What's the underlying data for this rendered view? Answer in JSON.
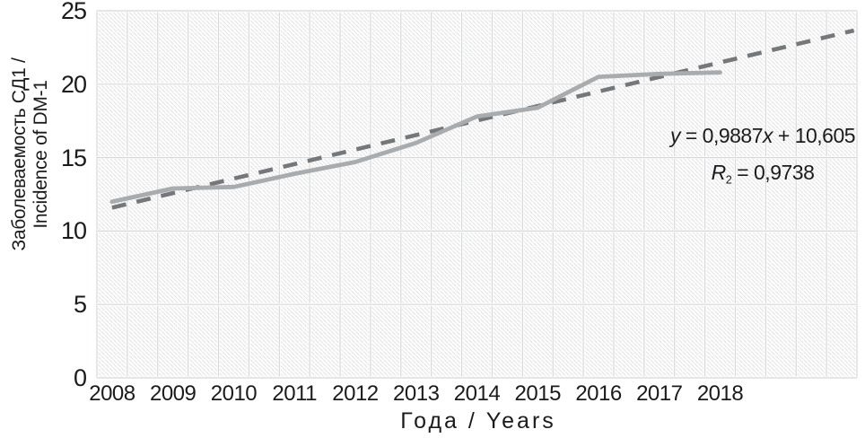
{
  "chart_data": {
    "type": "line",
    "title": "",
    "xlabel": "Года / Years",
    "ylabel_line1": "Заболеваемость СД1 /",
    "ylabel_line2": "Incidence of DM-1",
    "x": [
      "2008",
      "2009",
      "2010",
      "2011",
      "2012",
      "2013",
      "2014",
      "2015",
      "2016",
      "2017",
      "2018"
    ],
    "series": [
      {
        "id": "incidence-line",
        "line_style": "solid",
        "color": "#a9acae",
        "values": [
          12.0,
          12.9,
          13.0,
          13.9,
          14.7,
          16.0,
          17.8,
          18.4,
          20.5,
          20.7,
          20.8
        ]
      },
      {
        "id": "trend-line",
        "line_style": "dashed",
        "color": "#75777a",
        "slope": 0.9887,
        "intercept": 10.605,
        "trend_x_range": [
          1,
          13.2
        ]
      }
    ],
    "ylim": [
      0,
      25
    ],
    "yticks": [
      0,
      5,
      10,
      15,
      20,
      25
    ],
    "grid": {
      "on": true,
      "color": "#d6d7d9",
      "v_divisions": 25,
      "plot_bg_hatch_color": "#e5e6e7"
    },
    "legend": "none",
    "annotation": {
      "y_var": "y",
      "eq_mid": " = 0,9887",
      "x_var": "x",
      "eq_tail": " + 10,605",
      "r_var": "R",
      "r_sub": "2",
      "r_tail": " = 0,9738"
    }
  }
}
